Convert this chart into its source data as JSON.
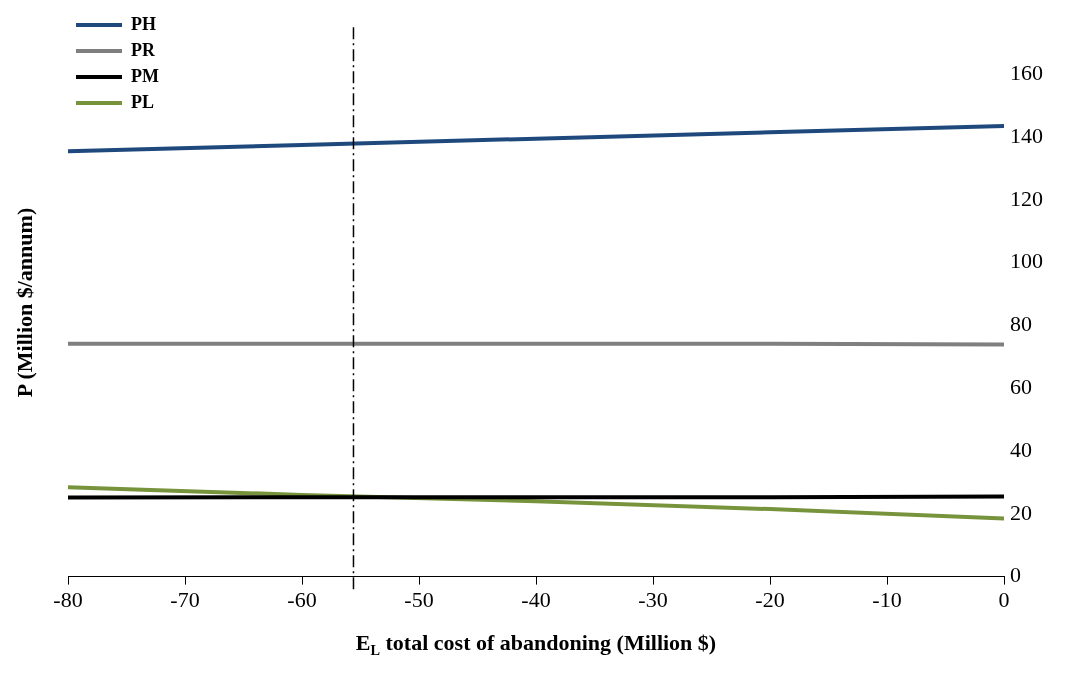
{
  "chart_data": {
    "type": "line",
    "xlabel": "E$_{L}$ total cost of abandoning (Million $)",
    "ylabel": "P (Million $/annum)",
    "x": [
      -80,
      -60,
      -40,
      -20,
      0
    ],
    "series": [
      {
        "name": "PH",
        "color": "#1f497d",
        "values": [
          135.5,
          137.5,
          139.5,
          141.5,
          143.5
        ]
      },
      {
        "name": "PR",
        "color": "#7f7f7f",
        "values": [
          74.2,
          74.2,
          74.2,
          74.2,
          73.9
        ]
      },
      {
        "name": "PM",
        "color": "#000000",
        "values": [
          25.2,
          25.3,
          25.3,
          25.3,
          25.5
        ]
      },
      {
        "name": "PL",
        "color": "#77933c",
        "values": [
          28.5,
          26,
          24,
          21.5,
          18.5
        ]
      }
    ],
    "xlim": [
      -80,
      0
    ],
    "xticks": [
      -80,
      -70,
      -60,
      -50,
      -40,
      -30,
      -20,
      -10,
      0
    ],
    "ylim": [
      0,
      175
    ],
    "yticks": [
      0,
      20,
      40,
      60,
      80,
      100,
      120,
      140,
      160
    ],
    "ref_lines": [
      {
        "axis": "x",
        "value": -55.6,
        "color": "#000000",
        "line_style": "dashed"
      }
    ],
    "grid": false,
    "legend": "top left",
    "marker": "none",
    "line_style": "solid"
  }
}
